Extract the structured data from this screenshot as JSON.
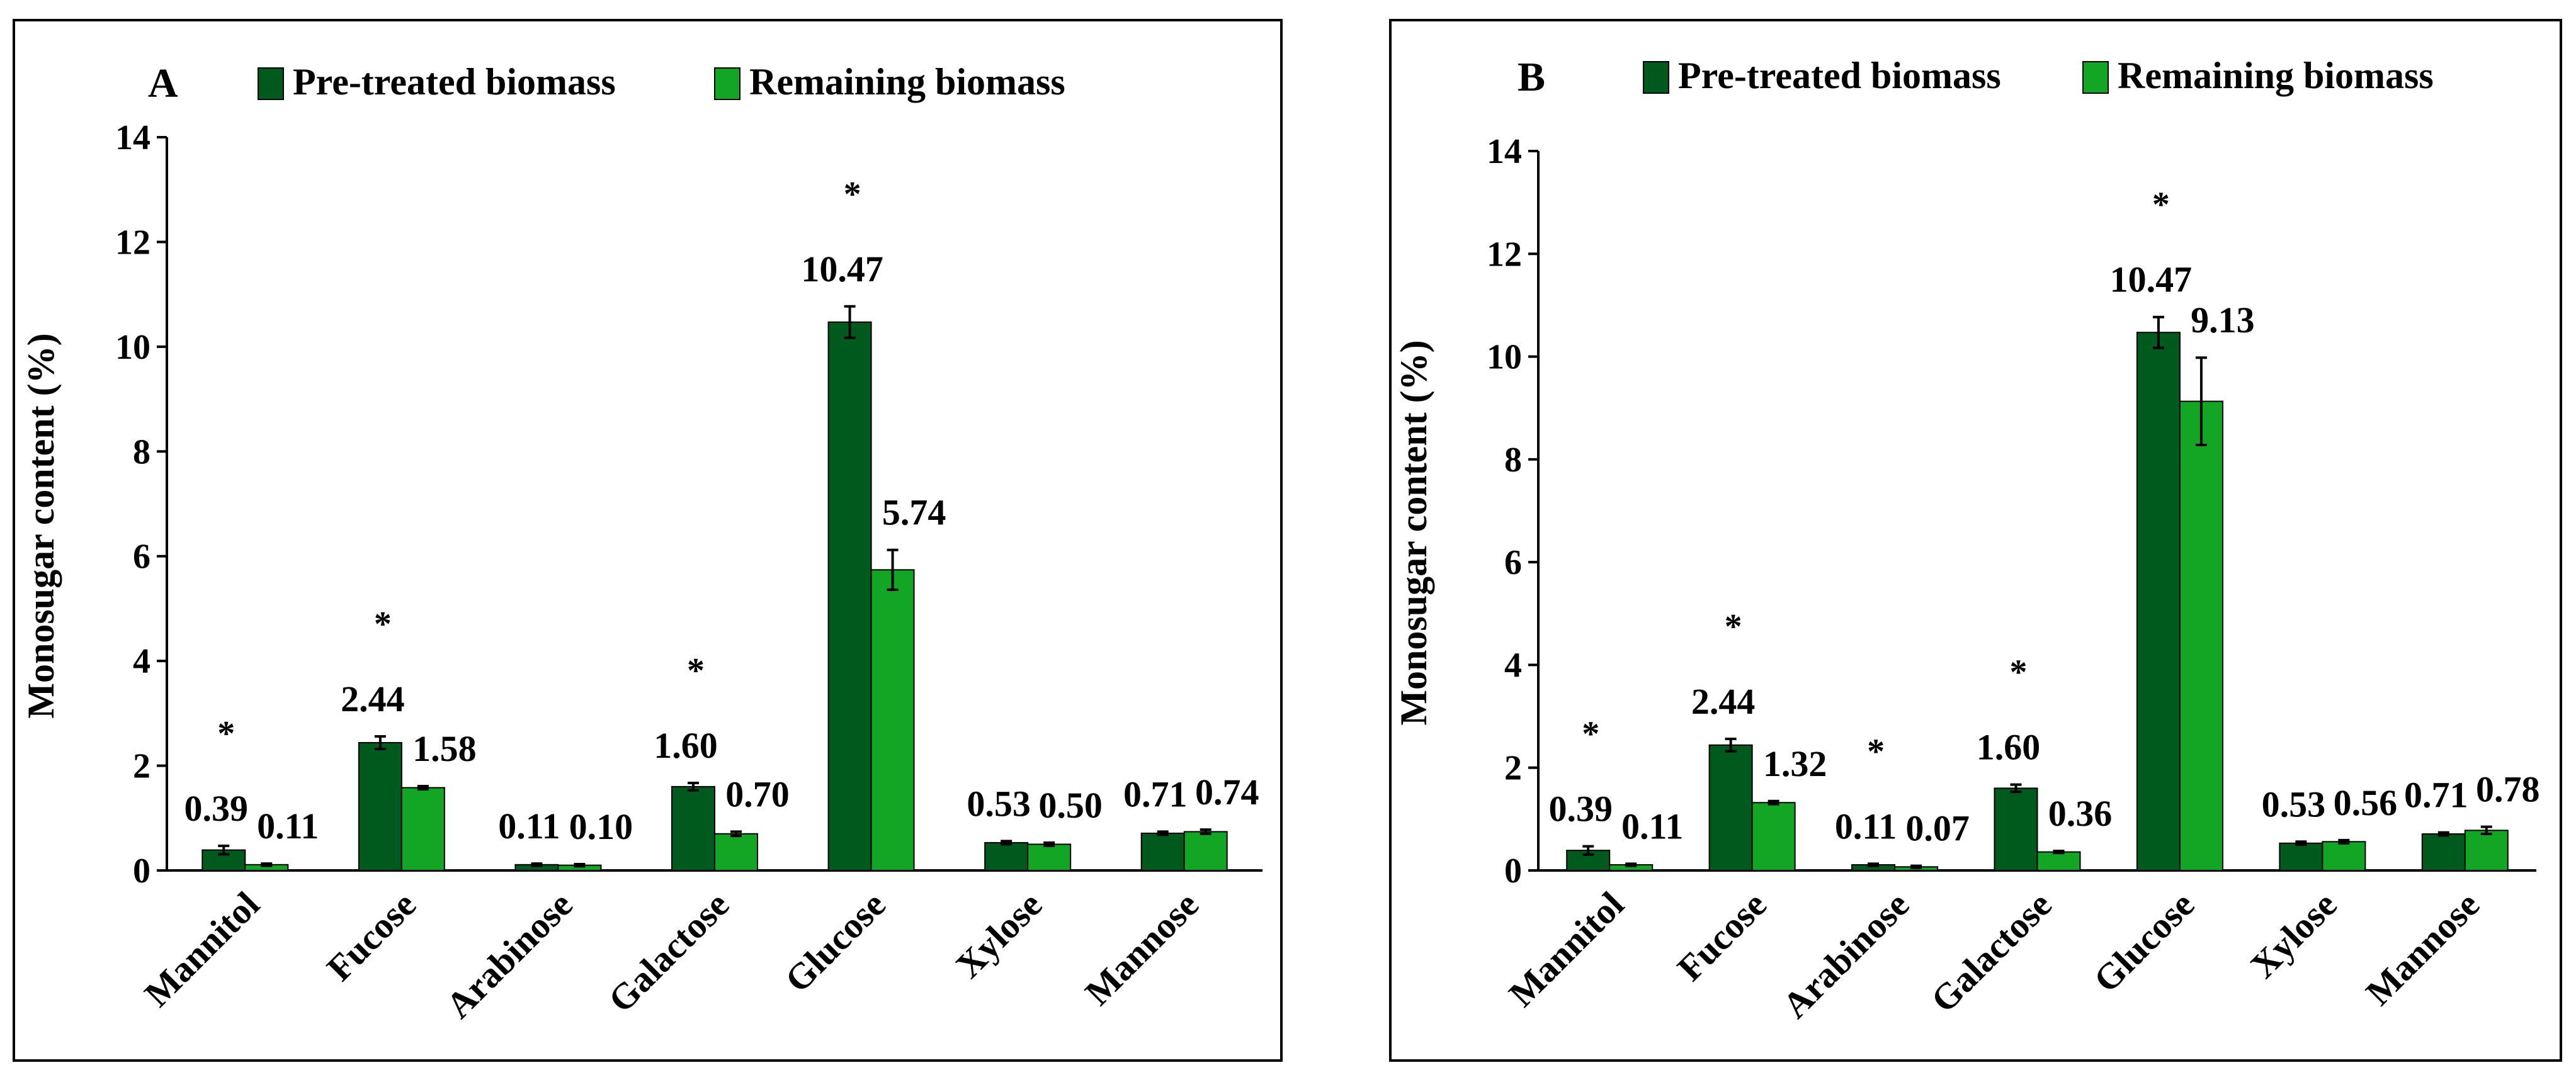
{
  "colors": {
    "pretreated": "#005A1E",
    "remaining": "#12A624",
    "axis": "#000000",
    "frame": "#000000"
  },
  "chart_data": [
    {
      "type": "bar",
      "panel_label": "A",
      "categories": [
        "Mannitol",
        "Fucose",
        "Arabinose",
        "Galactose",
        "Glucose",
        "Xylose",
        "Mannose"
      ],
      "series": [
        {
          "name": "Pre-treated biomass",
          "values": [
            0.39,
            2.44,
            0.11,
            1.6,
            10.47,
            0.53,
            0.71
          ],
          "labels": [
            "0.39",
            "2.44",
            "0.11",
            "1.60",
            "10.47",
            "0.53",
            "0.71"
          ],
          "errors": [
            0.08,
            0.12,
            0.02,
            0.07,
            0.3,
            0.03,
            0.03
          ]
        },
        {
          "name": "Remaining biomass",
          "values": [
            0.11,
            1.58,
            0.1,
            0.7,
            5.74,
            0.5,
            0.74
          ],
          "labels": [
            "0.11",
            "1.58",
            "0.10",
            "0.70",
            "5.74",
            "0.50",
            "0.74"
          ],
          "errors": [
            0.02,
            0.03,
            0.02,
            0.04,
            0.38,
            0.03,
            0.04
          ]
        }
      ],
      "significance": [
        "*",
        "*",
        "",
        "*",
        "*",
        "",
        ""
      ],
      "ylabel": "Monosugar content (%)",
      "xlabel": "",
      "ylim": [
        0,
        14
      ],
      "yticks": [
        "0",
        "2",
        "4",
        "6",
        "8",
        "10",
        "12",
        "14"
      ],
      "legend_position": "top"
    },
    {
      "type": "bar",
      "panel_label": "B",
      "categories": [
        "Mannitol",
        "Fucose",
        "Arabinose",
        "Galactose",
        "Glucose",
        "Xylose",
        "Mannose"
      ],
      "series": [
        {
          "name": "Pre-treated biomass",
          "values": [
            0.39,
            2.44,
            0.11,
            1.6,
            10.47,
            0.53,
            0.71
          ],
          "labels": [
            "0.39",
            "2.44",
            "0.11",
            "1.60",
            "10.47",
            "0.53",
            "0.71"
          ],
          "errors": [
            0.08,
            0.12,
            0.02,
            0.07,
            0.3,
            0.03,
            0.03
          ]
        },
        {
          "name": "Remaining biomass",
          "values": [
            0.11,
            1.32,
            0.07,
            0.36,
            9.13,
            0.56,
            0.78
          ],
          "labels": [
            "0.11",
            "1.32",
            "0.07",
            "0.36",
            "9.13",
            "0.56",
            "0.78"
          ],
          "errors": [
            0.02,
            0.03,
            0.02,
            0.02,
            0.85,
            0.03,
            0.07
          ]
        }
      ],
      "significance": [
        "*",
        "*",
        "*",
        "*",
        "*",
        "",
        ""
      ],
      "ylabel": "Monosugar content (%)",
      "xlabel": "",
      "ylim": [
        0,
        14
      ],
      "yticks": [
        "0",
        "2",
        "4",
        "6",
        "8",
        "10",
        "12",
        "14"
      ],
      "legend_position": "top"
    }
  ]
}
